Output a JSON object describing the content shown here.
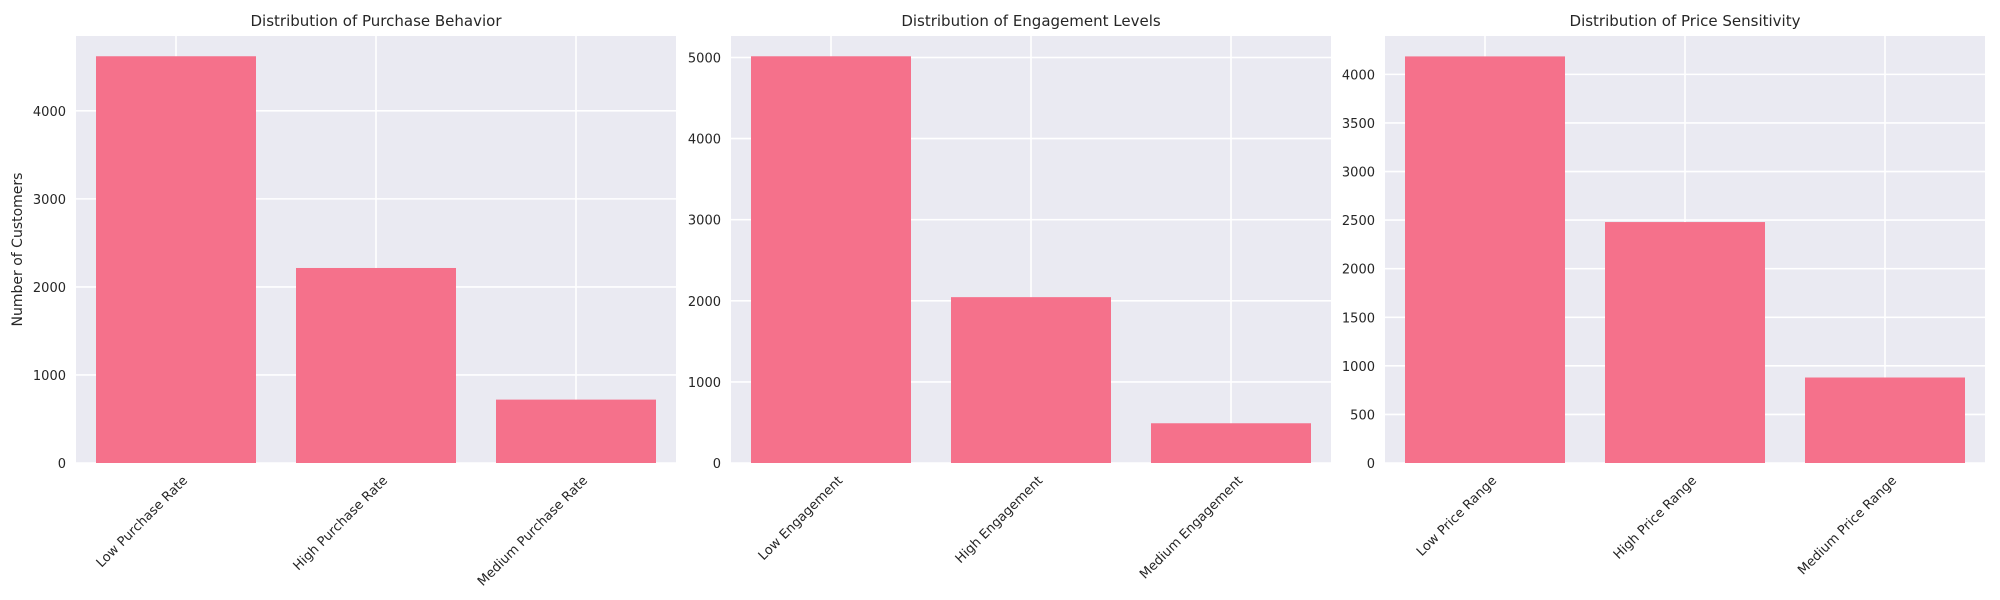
{
  "chart_data": [
    {
      "type": "bar",
      "title": "Distribution of Purchase Behavior",
      "xlabel": "",
      "ylabel": "Number of Customers",
      "categories": [
        "Low Purchase Rate",
        "High Purchase Rate",
        "Medium Purchase Rate"
      ],
      "values": [
        4620,
        2215,
        720
      ],
      "ylim": [
        0,
        4850
      ],
      "yticks": [
        0,
        1000,
        2000,
        3000,
        4000
      ],
      "bar_color": "#f5718b",
      "grid": true
    },
    {
      "type": "bar",
      "title": "Distribution of Engagement Levels",
      "xlabel": "",
      "ylabel": "",
      "categories": [
        "Low Engagement",
        "High Engagement",
        "Medium Engagement"
      ],
      "values": [
        5015,
        2045,
        490
      ],
      "ylim": [
        0,
        5265
      ],
      "yticks": [
        0,
        1000,
        2000,
        3000,
        4000,
        5000
      ],
      "bar_color": "#f5718b",
      "grid": true
    },
    {
      "type": "bar",
      "title": "Distribution of Price Sensitivity",
      "xlabel": "",
      "ylabel": "",
      "categories": [
        "Low Price Range",
        "High Price Range",
        "Medium Price Range"
      ],
      "values": [
        4185,
        2480,
        880
      ],
      "ylim": [
        0,
        4395
      ],
      "yticks": [
        0,
        500,
        1000,
        1500,
        2000,
        2500,
        3000,
        3500,
        4000
      ],
      "bar_color": "#f5718b",
      "grid": true
    }
  ]
}
